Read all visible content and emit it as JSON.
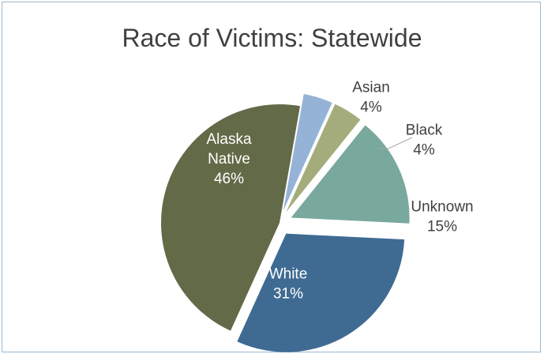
{
  "chart_data": {
    "type": "pie",
    "title": "Race of Victims: Statewide",
    "slices": [
      {
        "label_lines": [
          "Asian"
        ],
        "value": 4,
        "display": "4%",
        "color": "#94b3d6",
        "label_color": "#404040",
        "explode": 1
      },
      {
        "label_lines": [
          "Black"
        ],
        "value": 4,
        "display": "4%",
        "color": "#a4ac7c",
        "label_color": "#404040",
        "explode": 1
      },
      {
        "label_lines": [
          "Unknown"
        ],
        "value": 15,
        "display": "15%",
        "color": "#79a89c",
        "label_color": "#404040",
        "explode": 1
      },
      {
        "label_lines": [
          "White"
        ],
        "value": 31,
        "display": "31%",
        "color": "#3f6b93",
        "label_color": "#ffffff",
        "explode": 1
      },
      {
        "label_lines": [
          "Alaska",
          "Native"
        ],
        "value": 46,
        "display": "46%",
        "color": "#636a47",
        "label_color": "#ffffff",
        "explode": 0
      }
    ]
  }
}
